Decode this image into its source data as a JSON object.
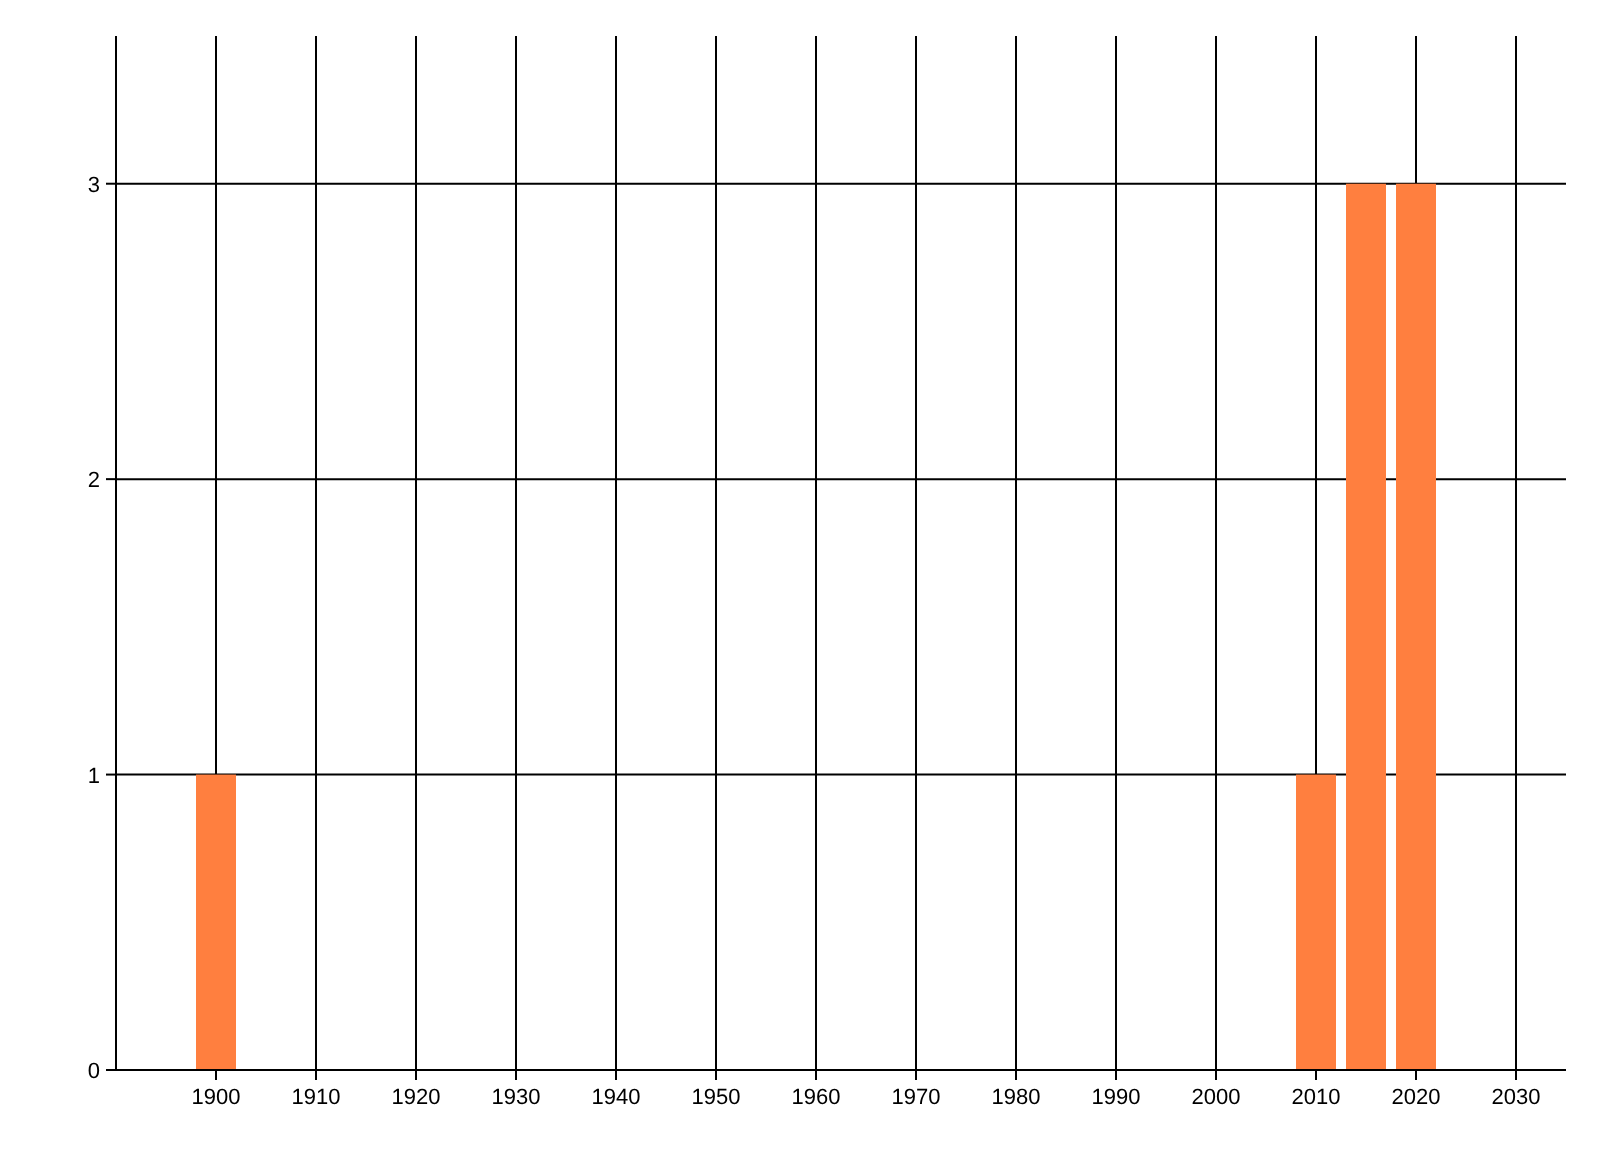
{
  "chart_data": {
    "type": "bar",
    "x": [
      1900,
      2010,
      2015,
      2020
    ],
    "values": [
      1,
      1,
      3,
      3
    ],
    "color": "#ff7f3f",
    "xlim": [
      1890,
      2035
    ],
    "xticks": [
      1900,
      1910,
      1920,
      1930,
      1940,
      1950,
      1960,
      1970,
      1980,
      1990,
      2000,
      2010,
      2020,
      2030
    ],
    "ylim": [
      0,
      3.5
    ],
    "yticks": [
      0,
      1,
      2,
      3
    ],
    "grid": true
  }
}
